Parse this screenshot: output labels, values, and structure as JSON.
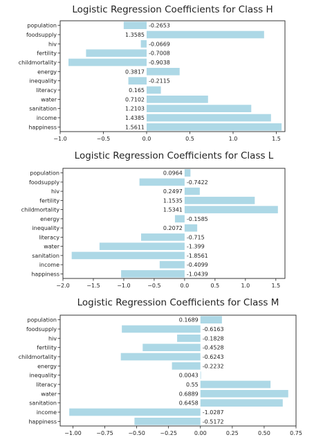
{
  "chart_data": [
    {
      "type": "bar",
      "orientation": "horizontal",
      "title": "Logistic Regression Coefficients for Class H",
      "xlabel": "",
      "ylabel": "",
      "categories": [
        "population",
        "foodsupply",
        "hiv",
        "fertility",
        "childmortality",
        "energy",
        "inequality",
        "literacy",
        "water",
        "sanitation",
        "income",
        "happiness"
      ],
      "values": [
        -0.2653,
        1.3585,
        -0.0669,
        -0.7008,
        -0.9038,
        0.3817,
        -0.2115,
        0.165,
        0.7102,
        1.2103,
        1.4385,
        1.5611
      ],
      "value_labels": [
        "-0.2653",
        "1.3585",
        "-0.0669",
        "-0.7008",
        "-0.9038",
        "0.3817",
        "-0.2115",
        "0.165",
        "0.7102",
        "1.2103",
        "1.4385",
        "1.5611"
      ],
      "xlim": [
        -1.0,
        1.6
      ],
      "xticks": [
        -1.0,
        -0.5,
        0.0,
        0.5,
        1.0,
        1.5
      ],
      "xtick_labels": [
        "−1.0",
        "−0.5",
        "0.0",
        "0.5",
        "1.0",
        "1.5"
      ],
      "bar_color": "#add8e6",
      "grid": false,
      "legend": false
    },
    {
      "type": "bar",
      "orientation": "horizontal",
      "title": "Logistic Regression Coefficients for Class L",
      "xlabel": "",
      "ylabel": "",
      "categories": [
        "population",
        "foodsupply",
        "hiv",
        "fertility",
        "childmortality",
        "energy",
        "inequality",
        "literacy",
        "water",
        "sanitation",
        "income",
        "happiness"
      ],
      "values": [
        0.0964,
        -0.7422,
        0.2497,
        1.1535,
        1.5341,
        -0.1585,
        0.2072,
        -0.715,
        -1.399,
        -1.8561,
        -0.4099,
        -1.0439
      ],
      "value_labels": [
        "0.0964",
        "-0.7422",
        "0.2497",
        "1.1535",
        "1.5341",
        "-0.1585",
        "0.2072",
        "-0.715",
        "-1.399",
        "-1.8561",
        "-0.4099",
        "-1.0439"
      ],
      "xlim": [
        -2.0,
        1.65
      ],
      "xticks": [
        -2.0,
        -1.5,
        -1.0,
        -0.5,
        0.0,
        0.5,
        1.0,
        1.5
      ],
      "xtick_labels": [
        "−2.0",
        "−1.5",
        "−1.0",
        "−0.5",
        "0.0",
        "0.5",
        "1.0",
        "1.5"
      ],
      "bar_color": "#add8e6",
      "grid": false,
      "legend": false
    },
    {
      "type": "bar",
      "orientation": "horizontal",
      "title": "Logistic Regression Coefficients for Class M",
      "xlabel": "",
      "ylabel": "",
      "categories": [
        "population",
        "foodsupply",
        "hiv",
        "fertility",
        "childmortality",
        "energy",
        "inequality",
        "literacy",
        "water",
        "sanitation",
        "income",
        "happiness"
      ],
      "values": [
        0.1689,
        -0.6163,
        -0.1828,
        -0.4528,
        -0.6243,
        -0.2232,
        0.0043,
        0.55,
        0.6889,
        0.6458,
        -1.0287,
        -0.5172
      ],
      "value_labels": [
        "0.1689",
        "-0.6163",
        "-0.1828",
        "-0.4528",
        "-0.6243",
        "-0.2232",
        "0.0043",
        "0.55",
        "0.6889",
        "0.6458",
        "-1.0287",
        "-0.5172"
      ],
      "xlim": [
        -1.1,
        0.75
      ],
      "xticks": [
        -1.0,
        -0.75,
        -0.5,
        -0.25,
        0.0,
        0.25,
        0.5,
        0.75
      ],
      "xtick_labels": [
        "−1.00",
        "−0.75",
        "−0.50",
        "−0.25",
        "0.00",
        "0.25",
        "0.50",
        "0.75"
      ],
      "bar_color": "#add8e6",
      "grid": false,
      "legend": false
    }
  ]
}
